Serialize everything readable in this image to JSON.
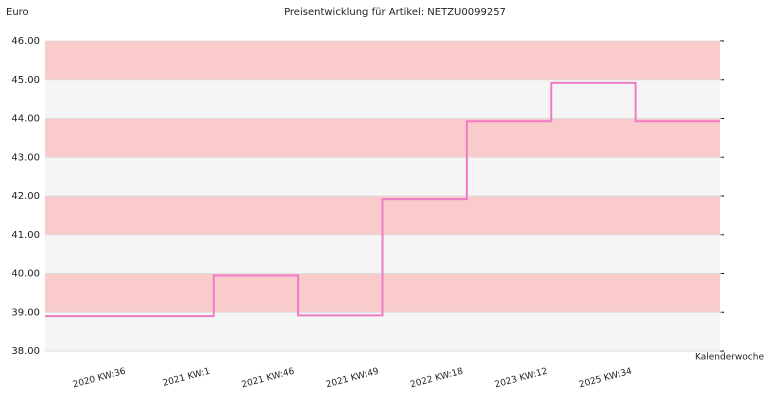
{
  "chart_data": {
    "type": "step",
    "title": "Preisentwicklung für Artikel: NETZU0099257",
    "y_label": "Euro",
    "x_label": "Kalenderwoche",
    "categories": [
      null,
      "2020 KW:36",
      "2021 KW:1",
      "2021 KW:46",
      "2021 KW:49",
      "2022 KW:18",
      "2023 KW:12",
      "2025 KW:34"
    ],
    "values": [
      38.9,
      38.9,
      39.95,
      38.92,
      41.92,
      43.93,
      44.92,
      43.93
    ],
    "color": "#f07cc4",
    "band_colors": [
      "#f5f5f5",
      "#f9cbcb"
    ],
    "ylim": [
      38,
      46
    ],
    "yticks": [
      {
        "value": 38,
        "label": "38.00"
      },
      {
        "value": 39,
        "label": "39.00"
      },
      {
        "value": 40,
        "label": "40.00"
      },
      {
        "value": 41,
        "label": "41.00"
      },
      {
        "value": 42,
        "label": "42.00"
      },
      {
        "value": 43,
        "label": "43.00"
      },
      {
        "value": 44,
        "label": "44.00"
      },
      {
        "value": 45,
        "label": "45.00"
      },
      {
        "value": 46,
        "label": "46.00"
      }
    ],
    "grid": true
  }
}
